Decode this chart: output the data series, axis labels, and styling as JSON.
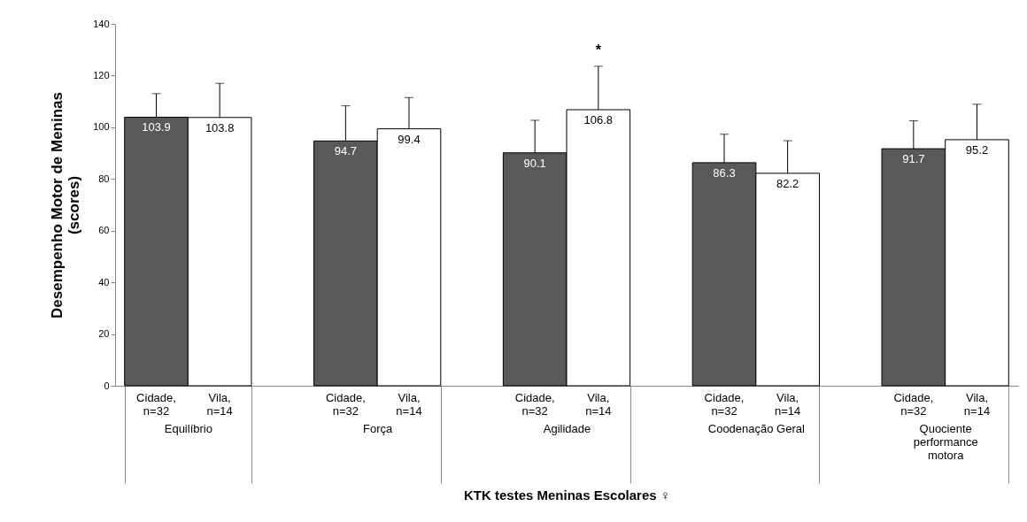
{
  "chart_data": {
    "type": "bar",
    "xlabel": "KTK testes Meninas Escolares ♀",
    "ylabel": "Desempenho Motor de Meninas\n(scores)",
    "categories": [
      "Equilíbrio",
      "Força",
      "Agilidade",
      "Coodenação Geral",
      "Quociente performance motora"
    ],
    "series": [
      {
        "name": "Cidade, n=32",
        "color": "#595959",
        "values": [
          103.9,
          94.7,
          90.1,
          86.3,
          91.7
        ],
        "errors": [
          [
            103.9,
            113
          ],
          [
            94.7,
            108.3
          ],
          [
            90.1,
            102.7
          ],
          [
            86.3,
            97.3
          ],
          [
            91.7,
            102.5
          ]
        ]
      },
      {
        "name": "Vila, n=14",
        "color": "#ffffff",
        "values": [
          103.8,
          99.4,
          106.8,
          82.2,
          95.2
        ],
        "errors": [
          [
            103.8,
            117
          ],
          [
            99.4,
            111.5
          ],
          [
            106.8,
            123.6
          ],
          [
            82.2,
            94.8
          ],
          [
            95.2,
            108.9
          ]
        ]
      }
    ],
    "annotations": [
      "*"
    ],
    "ylim": [
      0,
      140
    ],
    "yticks": [
      0,
      20,
      40,
      60,
      80,
      100,
      120,
      140
    ],
    "data_labels": true,
    "grid": false,
    "legend": false
  }
}
